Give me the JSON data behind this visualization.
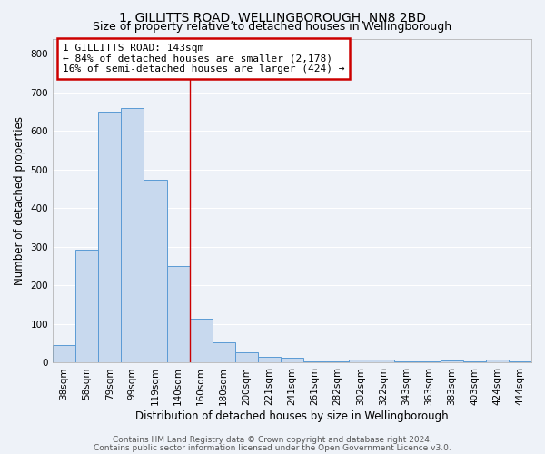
{
  "title": "1, GILLITTS ROAD, WELLINGBOROUGH, NN8 2BD",
  "subtitle": "Size of property relative to detached houses in Wellingborough",
  "xlabel": "Distribution of detached houses by size in Wellingborough",
  "ylabel": "Number of detached properties",
  "bar_labels": [
    "38sqm",
    "58sqm",
    "79sqm",
    "99sqm",
    "119sqm",
    "140sqm",
    "160sqm",
    "180sqm",
    "200sqm",
    "221sqm",
    "241sqm",
    "261sqm",
    "282sqm",
    "302sqm",
    "322sqm",
    "343sqm",
    "363sqm",
    "383sqm",
    "403sqm",
    "424sqm",
    "444sqm"
  ],
  "bar_values": [
    45,
    293,
    650,
    660,
    475,
    250,
    113,
    52,
    27,
    16,
    13,
    4,
    4,
    7,
    7,
    3,
    3,
    5,
    3,
    9,
    3
  ],
  "bar_color": "#c8d9ee",
  "bar_edge_color": "#5b9bd5",
  "ylim": [
    0,
    840
  ],
  "yticks": [
    0,
    100,
    200,
    300,
    400,
    500,
    600,
    700,
    800
  ],
  "vline_x": 5.5,
  "vline_color": "#cc0000",
  "annotation_line1": "1 GILLITTS ROAD: 143sqm",
  "annotation_line2": "← 84% of detached houses are smaller (2,178)",
  "annotation_line3": "16% of semi-detached houses are larger (424) →",
  "annotation_box_color": "#ffffff",
  "annotation_box_edge_color": "#cc0000",
  "footer_line1": "Contains HM Land Registry data © Crown copyright and database right 2024.",
  "footer_line2": "Contains public sector information licensed under the Open Government Licence v3.0.",
  "background_color": "#eef2f8",
  "grid_color": "#ffffff",
  "title_fontsize": 10,
  "subtitle_fontsize": 9,
  "label_fontsize": 8.5,
  "tick_fontsize": 7.5,
  "annotation_fontsize": 8,
  "footer_fontsize": 6.5
}
